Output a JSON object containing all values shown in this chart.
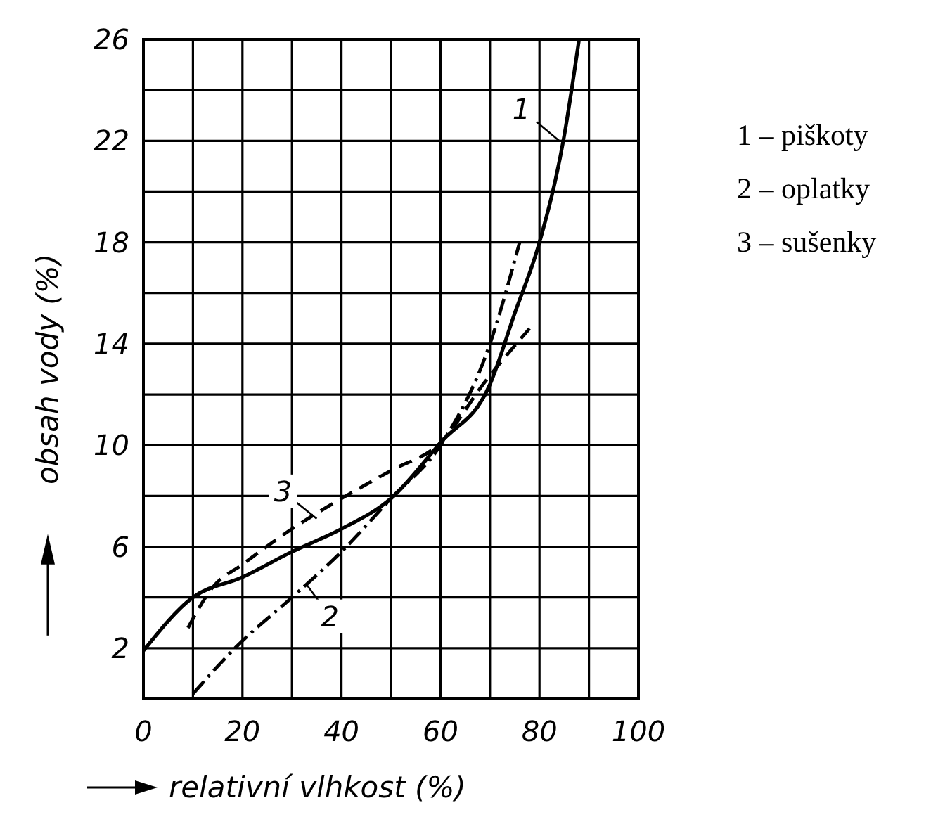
{
  "chart_data": {
    "type": "line",
    "xlabel": "relativní vlhkost (%)",
    "ylabel": "obsah vody (%)",
    "xlim": [
      0,
      100
    ],
    "ylim": [
      0,
      26
    ],
    "xticks": [
      0,
      {
        "value": 10,
        "label": null
      },
      20,
      {
        "value": 30,
        "label": null
      },
      40,
      {
        "value": 50,
        "label": null
      },
      60,
      {
        "value": 70,
        "label": null
      },
      80,
      {
        "value": 90,
        "label": null
      },
      100
    ],
    "yticks": [
      {
        "value": 0,
        "label": null
      },
      2,
      {
        "value": 4,
        "label": null
      },
      6,
      {
        "value": 8,
        "label": null
      },
      10,
      {
        "value": 12,
        "label": null
      },
      14,
      {
        "value": 16,
        "label": null
      },
      18,
      {
        "value": 20,
        "label": null
      },
      22,
      {
        "value": 24,
        "label": null
      },
      26
    ],
    "grid": true,
    "legend": "right",
    "marker": "none",
    "series": [
      {
        "name": "1 – piškoty",
        "color": "#000000",
        "line_style": "solid",
        "x": [
          0,
          10,
          20,
          30,
          40,
          50,
          60,
          70,
          75,
          80,
          85,
          88
        ],
        "values": [
          1.9,
          4.0,
          4.8,
          5.8,
          6.7,
          7.9,
          10.1,
          12.4,
          15.2,
          18.0,
          22.2,
          26
        ]
      },
      {
        "name": "2 – oplatky",
        "color": "#000000",
        "line_style": "dotted",
        "x": [
          10,
          19,
          30,
          40,
          50,
          60,
          70,
          76
        ],
        "values": [
          0.2,
          2.1,
          4.0,
          5.8,
          7.9,
          10.0,
          14.0,
          18.0
        ]
      },
      {
        "name": "3 – sušenky",
        "color": "#000000",
        "line_style": "dashed",
        "x": [
          9,
          14,
          20,
          30,
          40,
          50,
          60,
          69,
          78
        ],
        "values": [
          2.8,
          4.4,
          5.3,
          6.7,
          7.9,
          9.0,
          10.1,
          12.5,
          14.6
        ]
      }
    ],
    "annotations": [
      {
        "text": "1",
        "x": 84,
        "y": 22
      },
      {
        "text": "3",
        "x": 35,
        "y": 7.1
      },
      {
        "text": "2",
        "x": 33,
        "y": 4.5
      }
    ]
  }
}
